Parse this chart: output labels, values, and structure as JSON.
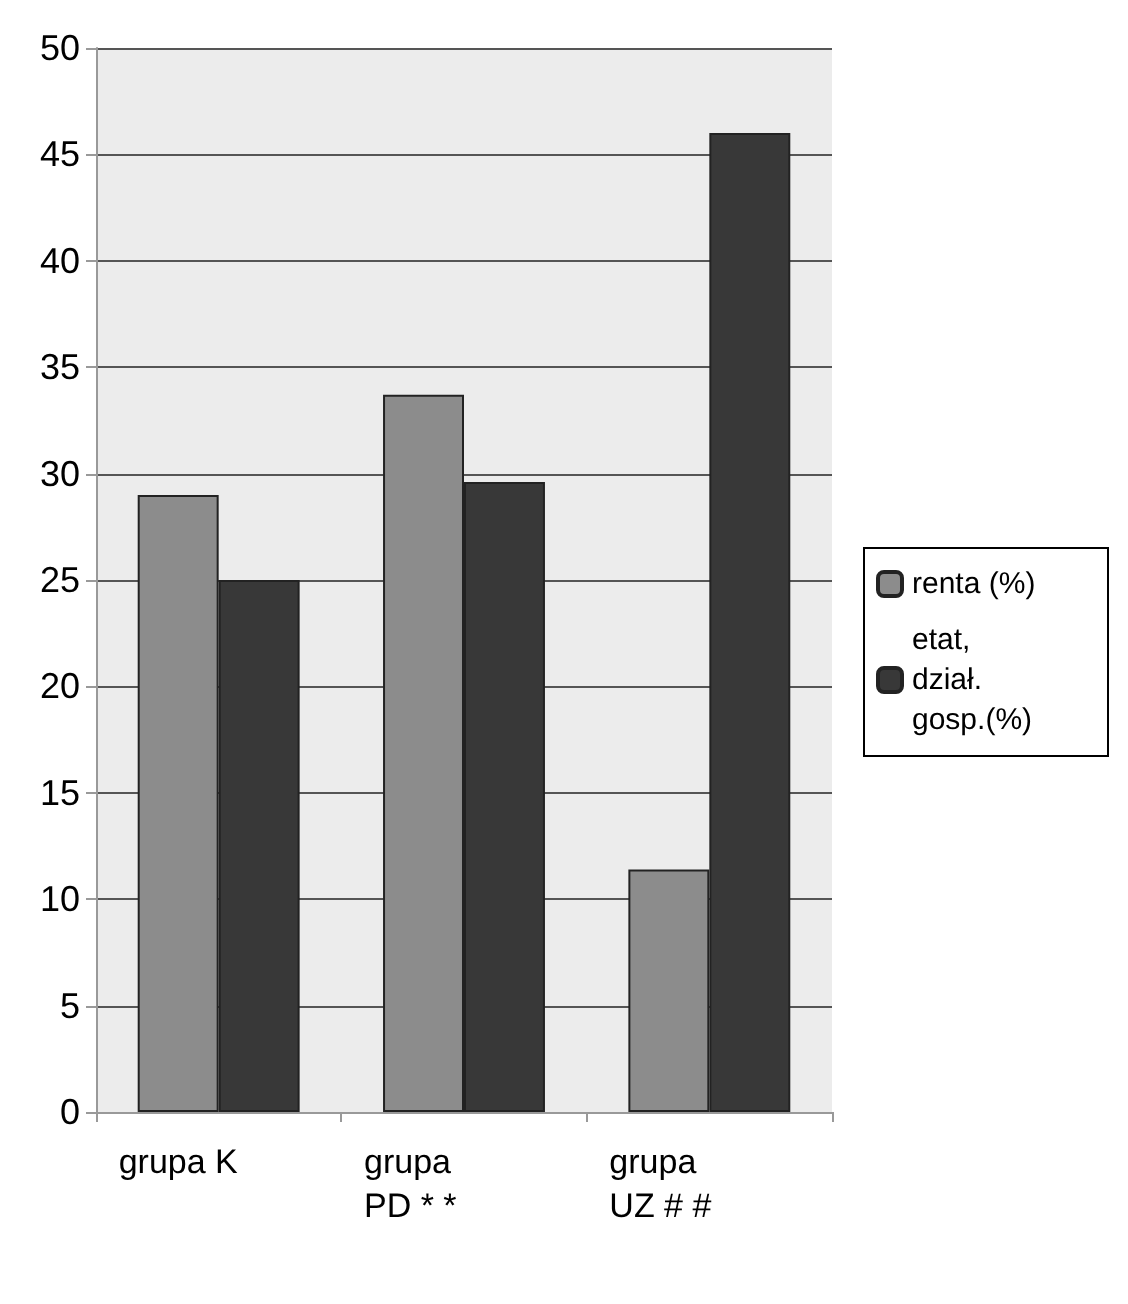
{
  "chart_data": {
    "type": "bar",
    "categories": [
      "grupa K",
      "grupa PD * *",
      "grupa UZ # #"
    ],
    "series": [
      {
        "name": "renta (%)",
        "color": "#8c8c8c",
        "values": [
          29,
          33.7,
          11.4
        ]
      },
      {
        "name": "etat, dział. gosp.(%)",
        "color": "#383838",
        "values": [
          25,
          29.6,
          46
        ]
      }
    ],
    "ylim": [
      0,
      50
    ],
    "yticks": [
      0,
      5,
      10,
      15,
      20,
      25,
      30,
      35,
      40,
      45,
      50
    ],
    "grid": "y",
    "legend": "right"
  }
}
